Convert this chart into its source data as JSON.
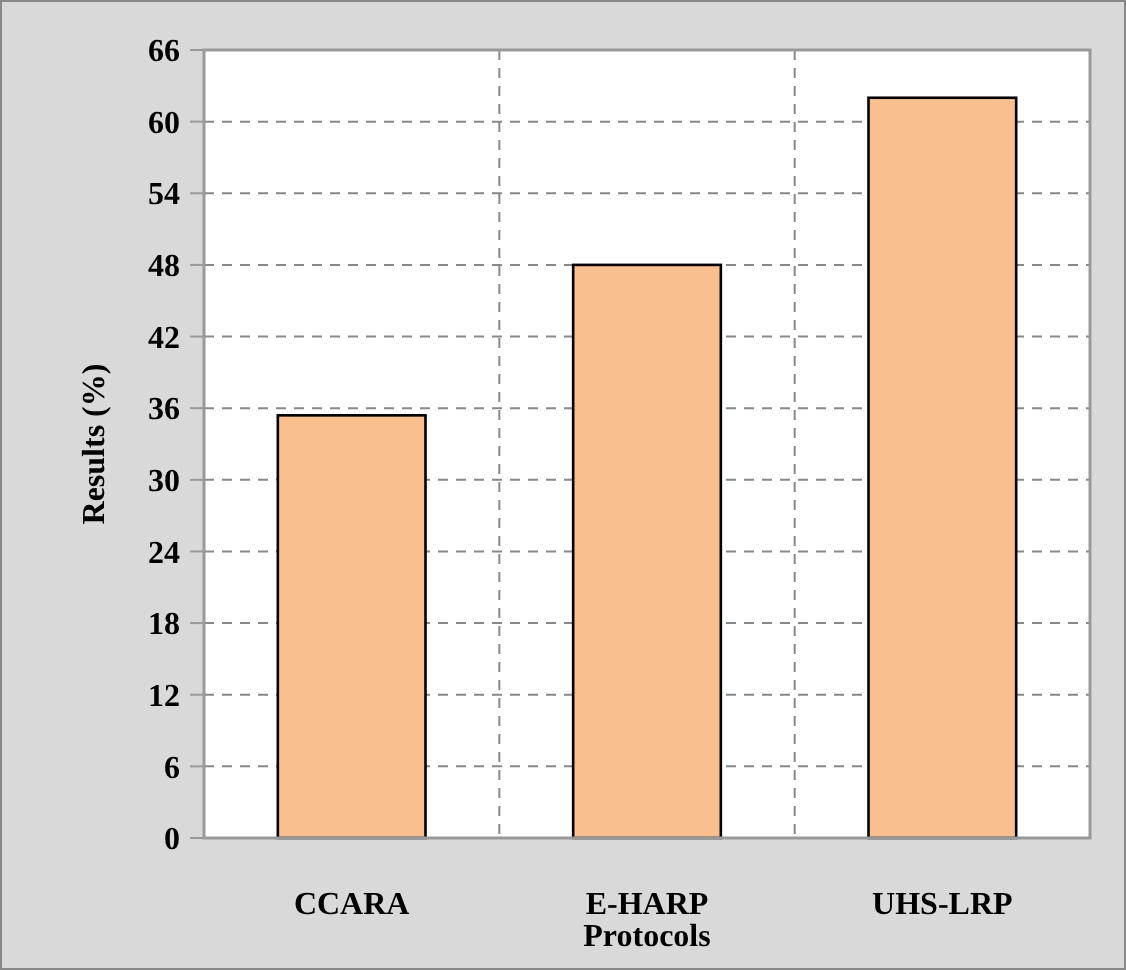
{
  "chart_data": {
    "type": "bar",
    "ylabel": "Results (%)",
    "xlabel": "Protocols",
    "categories": [
      "CCARA",
      "E-HARP",
      "UHS-LRP"
    ],
    "values": [
      35.4,
      48,
      62
    ],
    "color": "#f9bf8f",
    "ylim": [
      0,
      66
    ],
    "yticks": [
      0,
      6,
      12,
      18,
      24,
      30,
      36,
      42,
      48,
      54,
      60,
      66
    ],
    "grid": true
  }
}
